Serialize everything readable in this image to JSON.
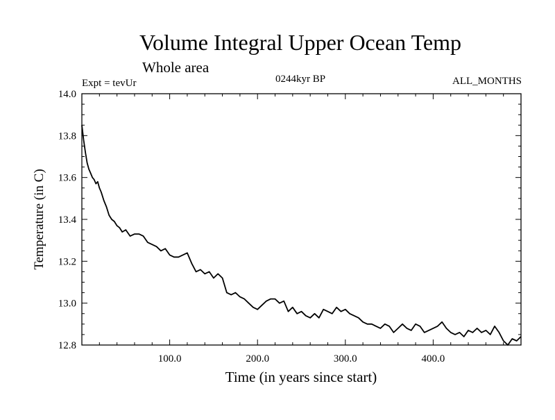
{
  "chart_data": {
    "type": "line",
    "title": "Volume Integral Upper Ocean Temp",
    "subtitle": "Whole area",
    "annotations": {
      "left": "Expt = tevUr",
      "center": "0244kyr BP",
      "right": "ALL_MONTHS"
    },
    "xlabel": "Time (in years since start)",
    "ylabel": "Temperature (in C)",
    "xlim": [
      0,
      500
    ],
    "ylim": [
      12.8,
      14.0
    ],
    "x_ticks": [
      "100.0",
      "200.0",
      "300.0",
      "400.0"
    ],
    "y_ticks": [
      "12.8",
      "13.0",
      "13.2",
      "13.4",
      "13.6",
      "13.8",
      "14.0"
    ],
    "grid": false,
    "line_color": "#000000",
    "series": [
      {
        "x": [
          0,
          2,
          4,
          6,
          8,
          10,
          12,
          14,
          16,
          18,
          20,
          22,
          25,
          28,
          31,
          34,
          37,
          40,
          43,
          46,
          50,
          55,
          60,
          65,
          70,
          75,
          80,
          85,
          90,
          95,
          100,
          105,
          110,
          115,
          120,
          125,
          130,
          135,
          140,
          145,
          150,
          155,
          160,
          165,
          170,
          175,
          180,
          185,
          190,
          195,
          200,
          205,
          210,
          215,
          220,
          225,
          230,
          235,
          240,
          245,
          250,
          255,
          260,
          265,
          270,
          275,
          280,
          285,
          290,
          295,
          300,
          305,
          310,
          315,
          320,
          325,
          330,
          335,
          340,
          345,
          350,
          355,
          360,
          365,
          370,
          375,
          380,
          385,
          390,
          395,
          400,
          405,
          410,
          415,
          420,
          425,
          430,
          435,
          440,
          445,
          450,
          455,
          460,
          465,
          470,
          475,
          480,
          485,
          490,
          495,
          500
        ],
        "y": [
          13.85,
          13.78,
          13.72,
          13.67,
          13.64,
          13.62,
          13.6,
          13.59,
          13.57,
          13.58,
          13.55,
          13.53,
          13.49,
          13.46,
          13.42,
          13.4,
          13.39,
          13.37,
          13.36,
          13.34,
          13.35,
          13.32,
          13.33,
          13.33,
          13.32,
          13.29,
          13.28,
          13.27,
          13.25,
          13.26,
          13.23,
          13.22,
          13.22,
          13.23,
          13.24,
          13.19,
          13.15,
          13.16,
          13.14,
          13.15,
          13.12,
          13.14,
          13.12,
          13.05,
          13.04,
          13.05,
          13.03,
          13.02,
          13.0,
          12.98,
          12.97,
          12.99,
          13.01,
          13.02,
          13.02,
          13.0,
          13.01,
          12.96,
          12.98,
          12.95,
          12.96,
          12.94,
          12.93,
          12.95,
          12.93,
          12.97,
          12.96,
          12.95,
          12.98,
          12.96,
          12.97,
          12.95,
          12.94,
          12.93,
          12.91,
          12.9,
          12.9,
          12.89,
          12.88,
          12.9,
          12.89,
          12.86,
          12.88,
          12.9,
          12.88,
          12.87,
          12.9,
          12.89,
          12.86,
          12.87,
          12.88,
          12.89,
          12.91,
          12.88,
          12.86,
          12.85,
          12.86,
          12.84,
          12.87,
          12.86,
          12.88,
          12.86,
          12.87,
          12.85,
          12.89,
          12.86,
          12.82,
          12.8,
          12.83,
          12.82,
          12.84
        ]
      }
    ]
  }
}
